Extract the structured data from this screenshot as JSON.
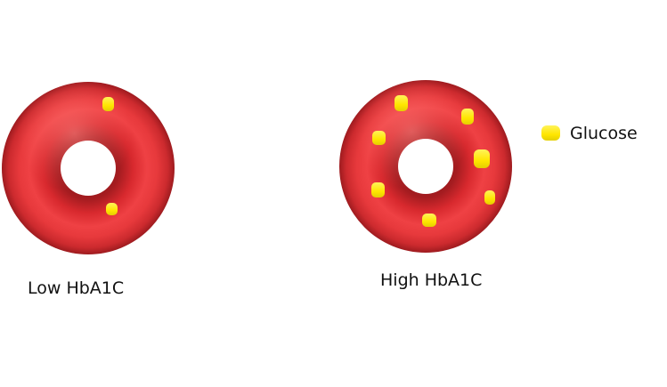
{
  "cells": [
    {
      "id": "low",
      "label": "Low HbA1C",
      "glucose_count": 2
    },
    {
      "id": "high",
      "label": "High HbA1C",
      "glucose_count": 7
    }
  ],
  "legend": {
    "glucose_label": "Glucose"
  },
  "colors": {
    "cell_base": "#e8383b",
    "cell_highlight": "#ff6a66",
    "cell_shadow": "#a51c20",
    "glucose": "#ffee00",
    "glucose_edge": "#d6c400",
    "text": "#111111"
  }
}
